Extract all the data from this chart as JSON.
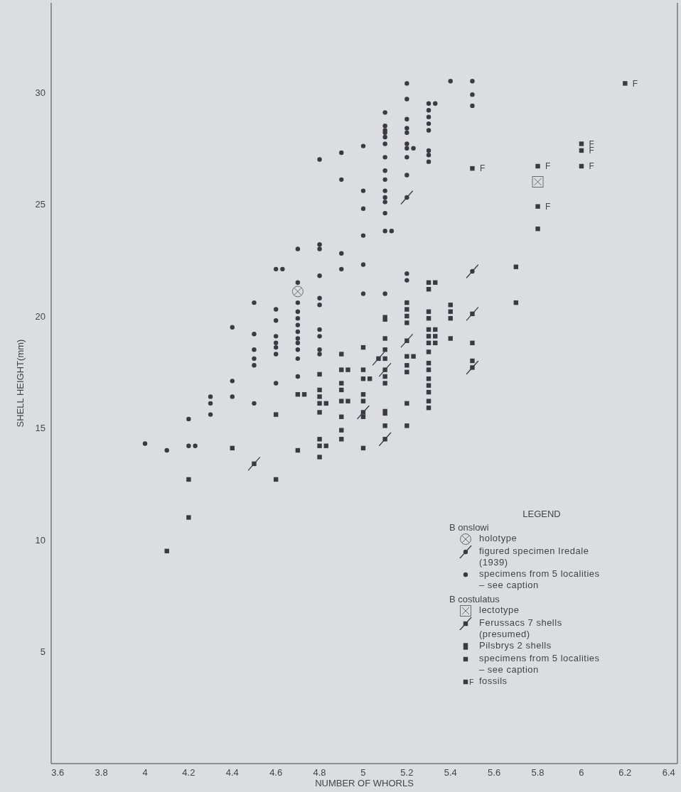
{
  "chart_data": {
    "type": "scatter",
    "xlabel": "NUMBER OF WHORLS",
    "ylabel": "SHELL HEIGHT(mm)",
    "legend_title": "LEGEND",
    "legend": "bottom right",
    "annotations": [
      "B onslowi",
      "B costulatus"
    ],
    "xlim": [
      3.57,
      6.44
    ],
    "ylim": [
      0,
      34
    ],
    "xticks": [
      3.6,
      3.8,
      4.0,
      4.2,
      4.4,
      4.6,
      4.8,
      5.0,
      5.2,
      5.4,
      5.6,
      5.8,
      6.0,
      6.2,
      6.4
    ],
    "yticks": [
      5,
      10,
      15,
      20,
      25,
      30
    ],
    "series": [
      {
        "name": "holotype",
        "color": "#6a6a70",
        "marker": "circle",
        "x": [
          4.7
        ],
        "values": [
          21.1
        ]
      },
      {
        "name": "figured specimen Iredale (1939)",
        "color": "#3a3a40",
        "marker": "circle",
        "x": [
          5.2,
          5.5
        ],
        "values": [
          25.3,
          22.0
        ]
      },
      {
        "name": "specimens from 5 localities – see caption",
        "color": "#3a3a40",
        "marker": "circle",
        "x": [
          4.0,
          4.1,
          4.2,
          4.2,
          4.23,
          4.3,
          4.3,
          4.3,
          4.4,
          4.4,
          4.4,
          4.5,
          4.5,
          4.5,
          4.5,
          4.5,
          4.5,
          4.6,
          4.63,
          4.6,
          4.6,
          4.6,
          4.6,
          4.6,
          4.6,
          4.6,
          4.7,
          4.7,
          4.7,
          4.7,
          4.7,
          4.7,
          4.7,
          4.7,
          4.7,
          4.7,
          4.7,
          4.7,
          4.8,
          4.8,
          4.8,
          4.8,
          4.8,
          4.8,
          4.8,
          4.8,
          4.8,
          4.8,
          4.9,
          4.9,
          4.9,
          4.9,
          5.0,
          5.0,
          5.0,
          5.0,
          5.0,
          5.0,
          5.1,
          5.1,
          5.1,
          5.1,
          5.1,
          5.1,
          5.1,
          5.1,
          5.1,
          5.1,
          5.1,
          5.1,
          5.1,
          5.1,
          5.13,
          5.1,
          5.2,
          5.2,
          5.2,
          5.2,
          5.2,
          5.2,
          5.2,
          5.23,
          5.2,
          5.2,
          5.2,
          5.2,
          5.3,
          5.33,
          5.3,
          5.3,
          5.3,
          5.3,
          5.3,
          5.3,
          5.3,
          5.4,
          5.5,
          5.5,
          5.5
        ],
        "values": [
          14.3,
          14.0,
          15.4,
          14.2,
          14.2,
          16.4,
          16.1,
          15.6,
          19.5,
          17.1,
          16.4,
          20.6,
          19.2,
          18.5,
          18.1,
          17.8,
          16.1,
          22.1,
          22.1,
          20.3,
          19.8,
          19.1,
          18.8,
          18.6,
          18.3,
          17.0,
          23.0,
          21.5,
          20.6,
          20.2,
          19.9,
          19.6,
          19.3,
          19.0,
          18.8,
          18.5,
          18.1,
          17.3,
          27.0,
          23.2,
          23.0,
          21.8,
          20.8,
          20.5,
          19.4,
          19.1,
          18.5,
          18.3,
          27.3,
          26.1,
          22.8,
          22.1,
          27.6,
          25.6,
          24.8,
          23.6,
          22.3,
          21.0,
          29.1,
          28.5,
          28.3,
          28.2,
          28.0,
          27.7,
          27.1,
          26.5,
          26.1,
          25.6,
          25.3,
          25.1,
          24.6,
          23.8,
          23.8,
          21.0,
          30.4,
          29.7,
          28.8,
          28.4,
          28.2,
          27.7,
          27.5,
          27.5,
          27.1,
          26.3,
          21.9,
          21.6,
          29.5,
          29.5,
          29.2,
          28.9,
          28.6,
          28.3,
          27.4,
          27.2,
          26.9,
          30.5,
          30.5,
          29.9,
          29.4
        ]
      },
      {
        "name": "lectotype",
        "color": "#6a6a70",
        "marker": "square",
        "x": [
          5.8
        ],
        "values": [
          26.0
        ]
      },
      {
        "name": "Ferussacs 7 shells (presumed)",
        "color": "#3a3a40",
        "x": [
          4.5,
          5.0,
          5.07,
          5.1,
          5.1,
          5.2,
          5.5,
          5.5
        ],
        "values": [
          13.4,
          15.7,
          18.1,
          17.6,
          14.5,
          18.9,
          20.1,
          17.7
        ]
      },
      {
        "name": "Pilsbrys 2 shells",
        "color": "#3a3a40",
        "marker": "square",
        "x": [
          5.1,
          5.1
        ],
        "values": [
          19.9,
          15.7
        ]
      },
      {
        "name": "specimens from 5 localities – see caption",
        "color": "#3a3a40",
        "marker": "square",
        "x": [
          4.1,
          4.2,
          4.2,
          4.4,
          4.6,
          4.6,
          4.7,
          4.73,
          4.7,
          4.8,
          4.8,
          4.8,
          4.8,
          4.83,
          4.8,
          4.8,
          4.8,
          4.83,
          4.8,
          4.9,
          4.9,
          4.93,
          4.9,
          4.9,
          4.9,
          4.93,
          4.9,
          4.9,
          4.9,
          5.0,
          5.0,
          5.0,
          5.03,
          5.0,
          5.0,
          5.0,
          5.0,
          5.1,
          5.1,
          5.1,
          5.1,
          5.1,
          5.1,
          5.2,
          5.2,
          5.2,
          5.2,
          5.2,
          5.23,
          5.2,
          5.2,
          5.2,
          5.2,
          5.3,
          5.33,
          5.3,
          5.3,
          5.3,
          5.3,
          5.33,
          5.3,
          5.33,
          5.3,
          5.33,
          5.3,
          5.3,
          5.3,
          5.3,
          5.3,
          5.3,
          5.3,
          5.3,
          5.4,
          5.4,
          5.4,
          5.4,
          5.5,
          5.5,
          5.7,
          5.7,
          5.8
        ],
        "values": [
          9.5,
          12.7,
          11.0,
          14.1,
          15.6,
          12.7,
          16.5,
          16.5,
          14.0,
          17.4,
          16.7,
          16.4,
          16.1,
          16.1,
          15.7,
          14.5,
          14.2,
          14.2,
          13.7,
          18.3,
          17.6,
          17.6,
          17.0,
          16.7,
          16.2,
          16.2,
          15.5,
          14.9,
          14.5,
          18.6,
          17.6,
          17.2,
          17.2,
          16.5,
          16.2,
          15.5,
          14.1,
          19.0,
          18.5,
          18.1,
          17.3,
          17.0,
          15.1,
          20.6,
          20.3,
          20.0,
          19.7,
          18.2,
          18.2,
          17.8,
          17.5,
          16.1,
          15.1,
          21.5,
          21.5,
          21.2,
          20.2,
          19.9,
          19.4,
          19.4,
          19.1,
          19.1,
          18.8,
          18.8,
          18.4,
          17.9,
          17.6,
          17.2,
          16.9,
          16.6,
          16.2,
          15.9,
          20.5,
          20.2,
          19.9,
          19.0,
          18.8,
          18.0,
          22.2,
          20.6,
          23.9
        ]
      },
      {
        "name": "fossils",
        "color": "#3a3a40",
        "marker": "square",
        "x": [
          5.5,
          5.8,
          5.8,
          6.0,
          6.0,
          6.0,
          6.2
        ],
        "values": [
          26.6,
          26.7,
          24.9,
          27.7,
          27.4,
          26.7,
          30.4
        ],
        "value_labels": [
          "F",
          "F",
          "F",
          "F",
          "F",
          "F",
          "F"
        ]
      }
    ]
  }
}
